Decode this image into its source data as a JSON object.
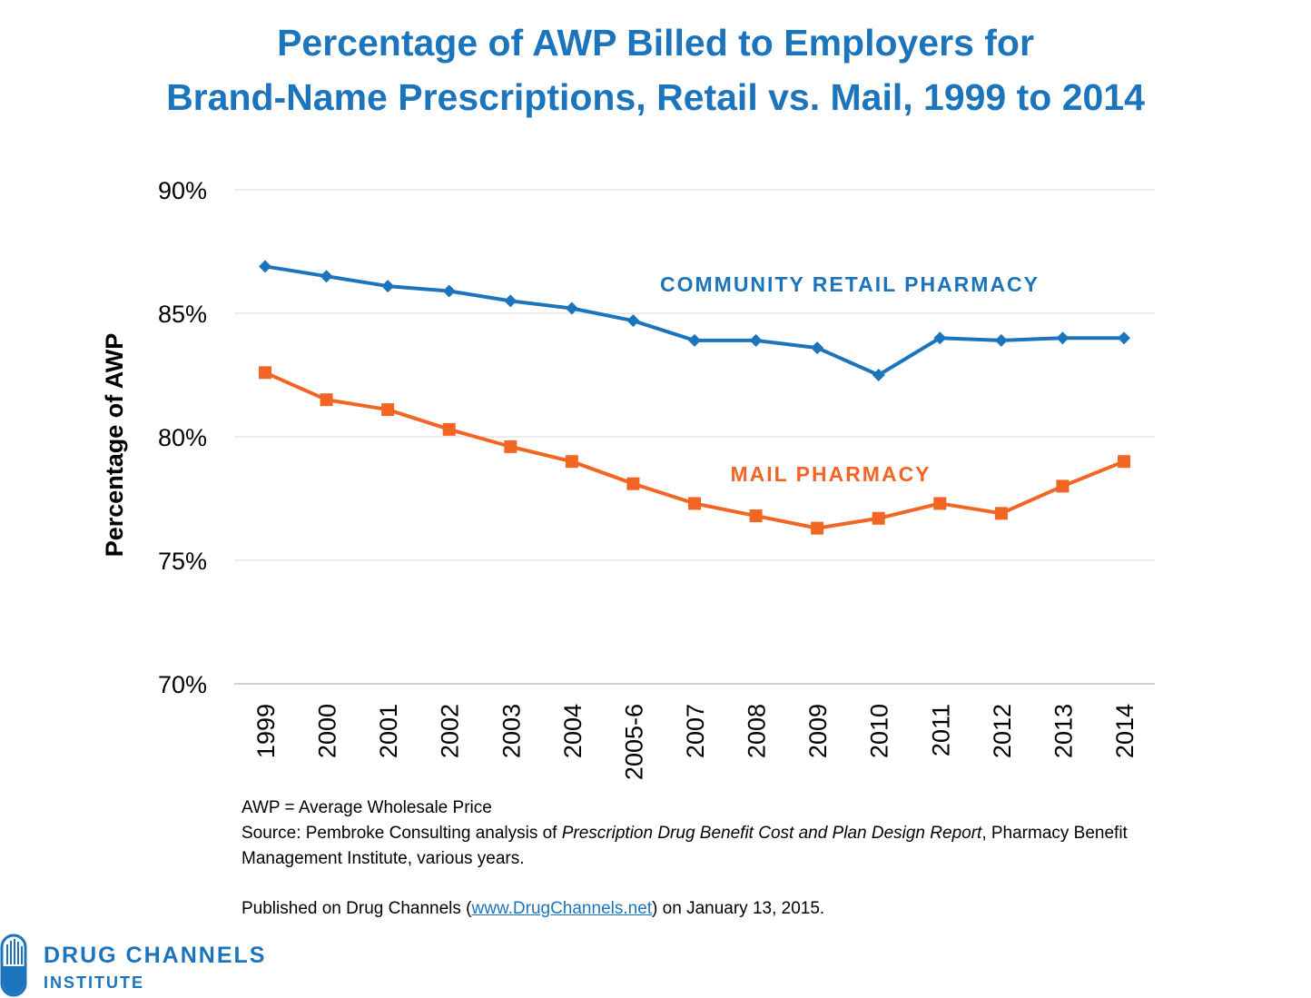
{
  "title": {
    "line1": "Percentage of AWP Billed to Employers for",
    "line2": "Brand-Name Prescriptions, Retail vs. Mail, 1999 to 2014"
  },
  "chart_data": {
    "type": "line",
    "title": "Percentage of AWP Billed to Employers for Brand-Name Prescriptions, Retail vs. Mail, 1999 to 2014",
    "xlabel": "",
    "ylabel": "Percentage of AWP",
    "categories": [
      "1999",
      "2000",
      "2001",
      "2002",
      "2003",
      "2004",
      "2005-6",
      "2007",
      "2008",
      "2009",
      "2010",
      "2011",
      "2012",
      "2013",
      "2014"
    ],
    "ylim": [
      70,
      90
    ],
    "y_ticks": [
      70,
      75,
      80,
      85,
      90
    ],
    "y_tick_labels": [
      "70%",
      "75%",
      "80%",
      "85%",
      "90%"
    ],
    "grid": true,
    "legend": "inline labels",
    "series": [
      {
        "name": "COMMUNITY RETAIL PHARMACY",
        "color": "#1c75bc",
        "marker": "diamond",
        "values": [
          86.9,
          86.5,
          86.1,
          85.9,
          85.5,
          85.2,
          84.7,
          83.9,
          83.9,
          83.6,
          82.5,
          84.0,
          83.9,
          84.0,
          84.0
        ]
      },
      {
        "name": "MAIL PHARMACY",
        "color": "#f26522",
        "marker": "square",
        "values": [
          82.6,
          81.5,
          81.1,
          80.3,
          79.6,
          79.0,
          78.1,
          77.3,
          76.8,
          76.3,
          76.7,
          77.3,
          76.9,
          78.0,
          79.0
        ]
      }
    ]
  },
  "notes": {
    "definition": "AWP = Average Wholesale Price",
    "source_prefix": "Source: Pembroke Consulting analysis of ",
    "source_title": "Prescription Drug Benefit Cost and Plan Design Report",
    "source_suffix": ", Pharmacy Benefit Management Institute, various years.",
    "published_prefix": "Published on Drug Channels (",
    "published_link": "www.DrugChannels.net",
    "published_suffix": ") on January 13, 2015."
  },
  "brand": {
    "name": "DRUG CHANNELS",
    "sub": "INSTITUTE",
    "logo_icon": "pill-icon"
  },
  "colors": {
    "title": "#1c75bc",
    "retail": "#1c75bc",
    "mail": "#f26522",
    "grid": "#d9d9d9"
  }
}
